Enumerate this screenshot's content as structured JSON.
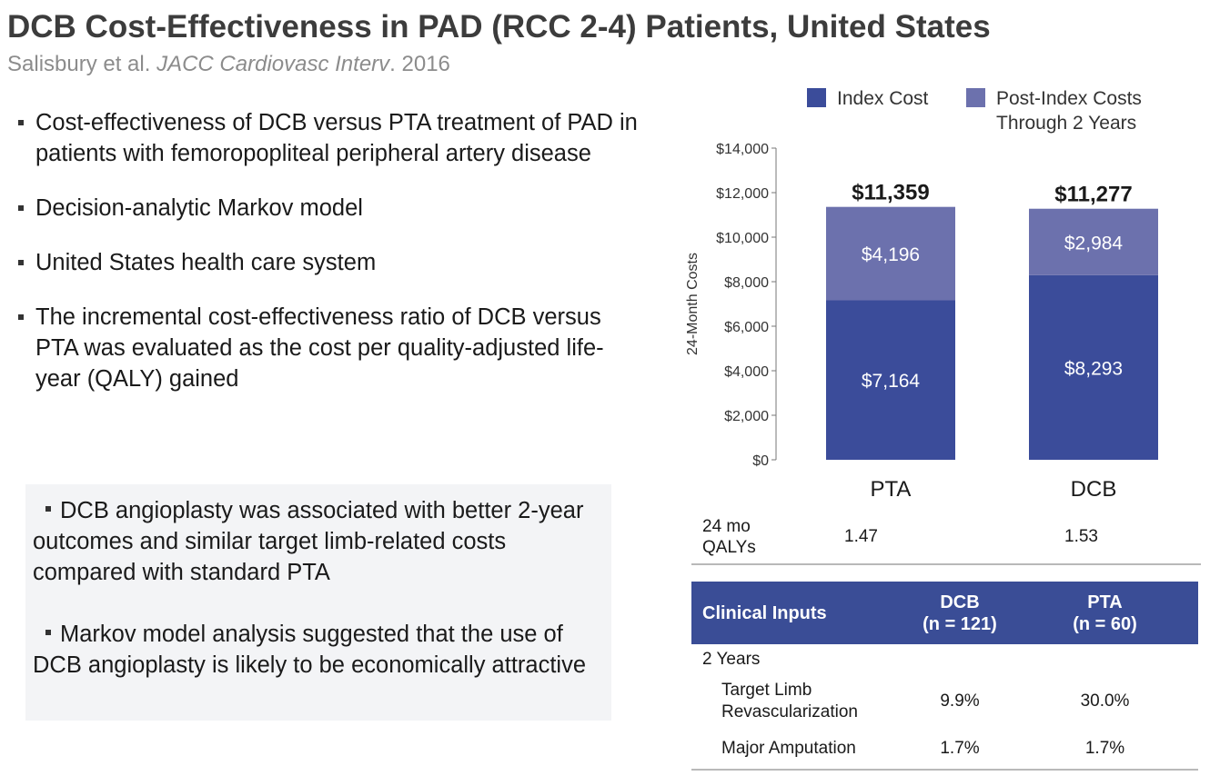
{
  "slide": {
    "title": "DCB Cost-Effectiveness in PAD (RCC 2-4) Patients, United States",
    "citation": {
      "authors": "Salisbury et al.",
      "journal": "JACC Cardiovasc Interv",
      "year": ". 2016"
    }
  },
  "bullets": [
    "Cost-effectiveness of DCB versus PTA treatment of PAD in patients with femoropopliteal peripheral artery disease",
    "Decision-analytic Markov model",
    "United States health care system",
    "The incremental cost-effectiveness ratio of DCB versus PTA was evaluated as the cost per quality-adjusted life-year (QALY) gained"
  ],
  "summary": [
    "DCB angioplasty was associated with better 2-year outcomes and similar target limb-related costs compared with standard PTA",
    "Markov model analysis suggested that the use of DCB angioplasty is likely to be economically attractive"
  ],
  "chart_data": {
    "type": "bar",
    "stacked": true,
    "categories": [
      "PTA",
      "DCB"
    ],
    "series": [
      {
        "name": "Index Cost",
        "values": [
          7164,
          8293
        ],
        "labels": [
          "$7,164",
          "$8,293"
        ],
        "color": "#3b4c9a"
      },
      {
        "name": "Post-Index Costs Through 2 Years",
        "values": [
          4196,
          2984
        ],
        "labels": [
          "$4,196",
          "$2,984"
        ],
        "color": "#6c71ad"
      }
    ],
    "totals": [
      "$11,359",
      "$11,277"
    ],
    "ylabel": "24-Month Costs",
    "ylim": [
      0,
      14000
    ],
    "yticks": [
      0,
      2000,
      4000,
      6000,
      8000,
      10000,
      12000,
      14000
    ],
    "ytick_labels": [
      "$0",
      "$2,000",
      "$4,000",
      "$6,000",
      "$8,000",
      "$10,000",
      "$12,000",
      "$14,000"
    ],
    "legend": {
      "position": "top",
      "entries": [
        "Index Cost",
        "Post-Index Costs",
        "Through 2 Years"
      ]
    },
    "grid": false
  },
  "qalys": {
    "label": "24 mo QALYs",
    "pta": "1.47",
    "dcb": "1.53"
  },
  "clinical_table": {
    "headers": [
      "Clinical Inputs",
      "DCB",
      "(n = 121)",
      "PTA",
      "(n = 60)"
    ],
    "group": "2 Years",
    "rows": [
      {
        "label": "Target Limb Revascularization",
        "dcb": "9.9%",
        "pta": "30.0%"
      },
      {
        "label": "Major Amputation",
        "dcb": "1.7%",
        "pta": "1.7%"
      }
    ]
  }
}
